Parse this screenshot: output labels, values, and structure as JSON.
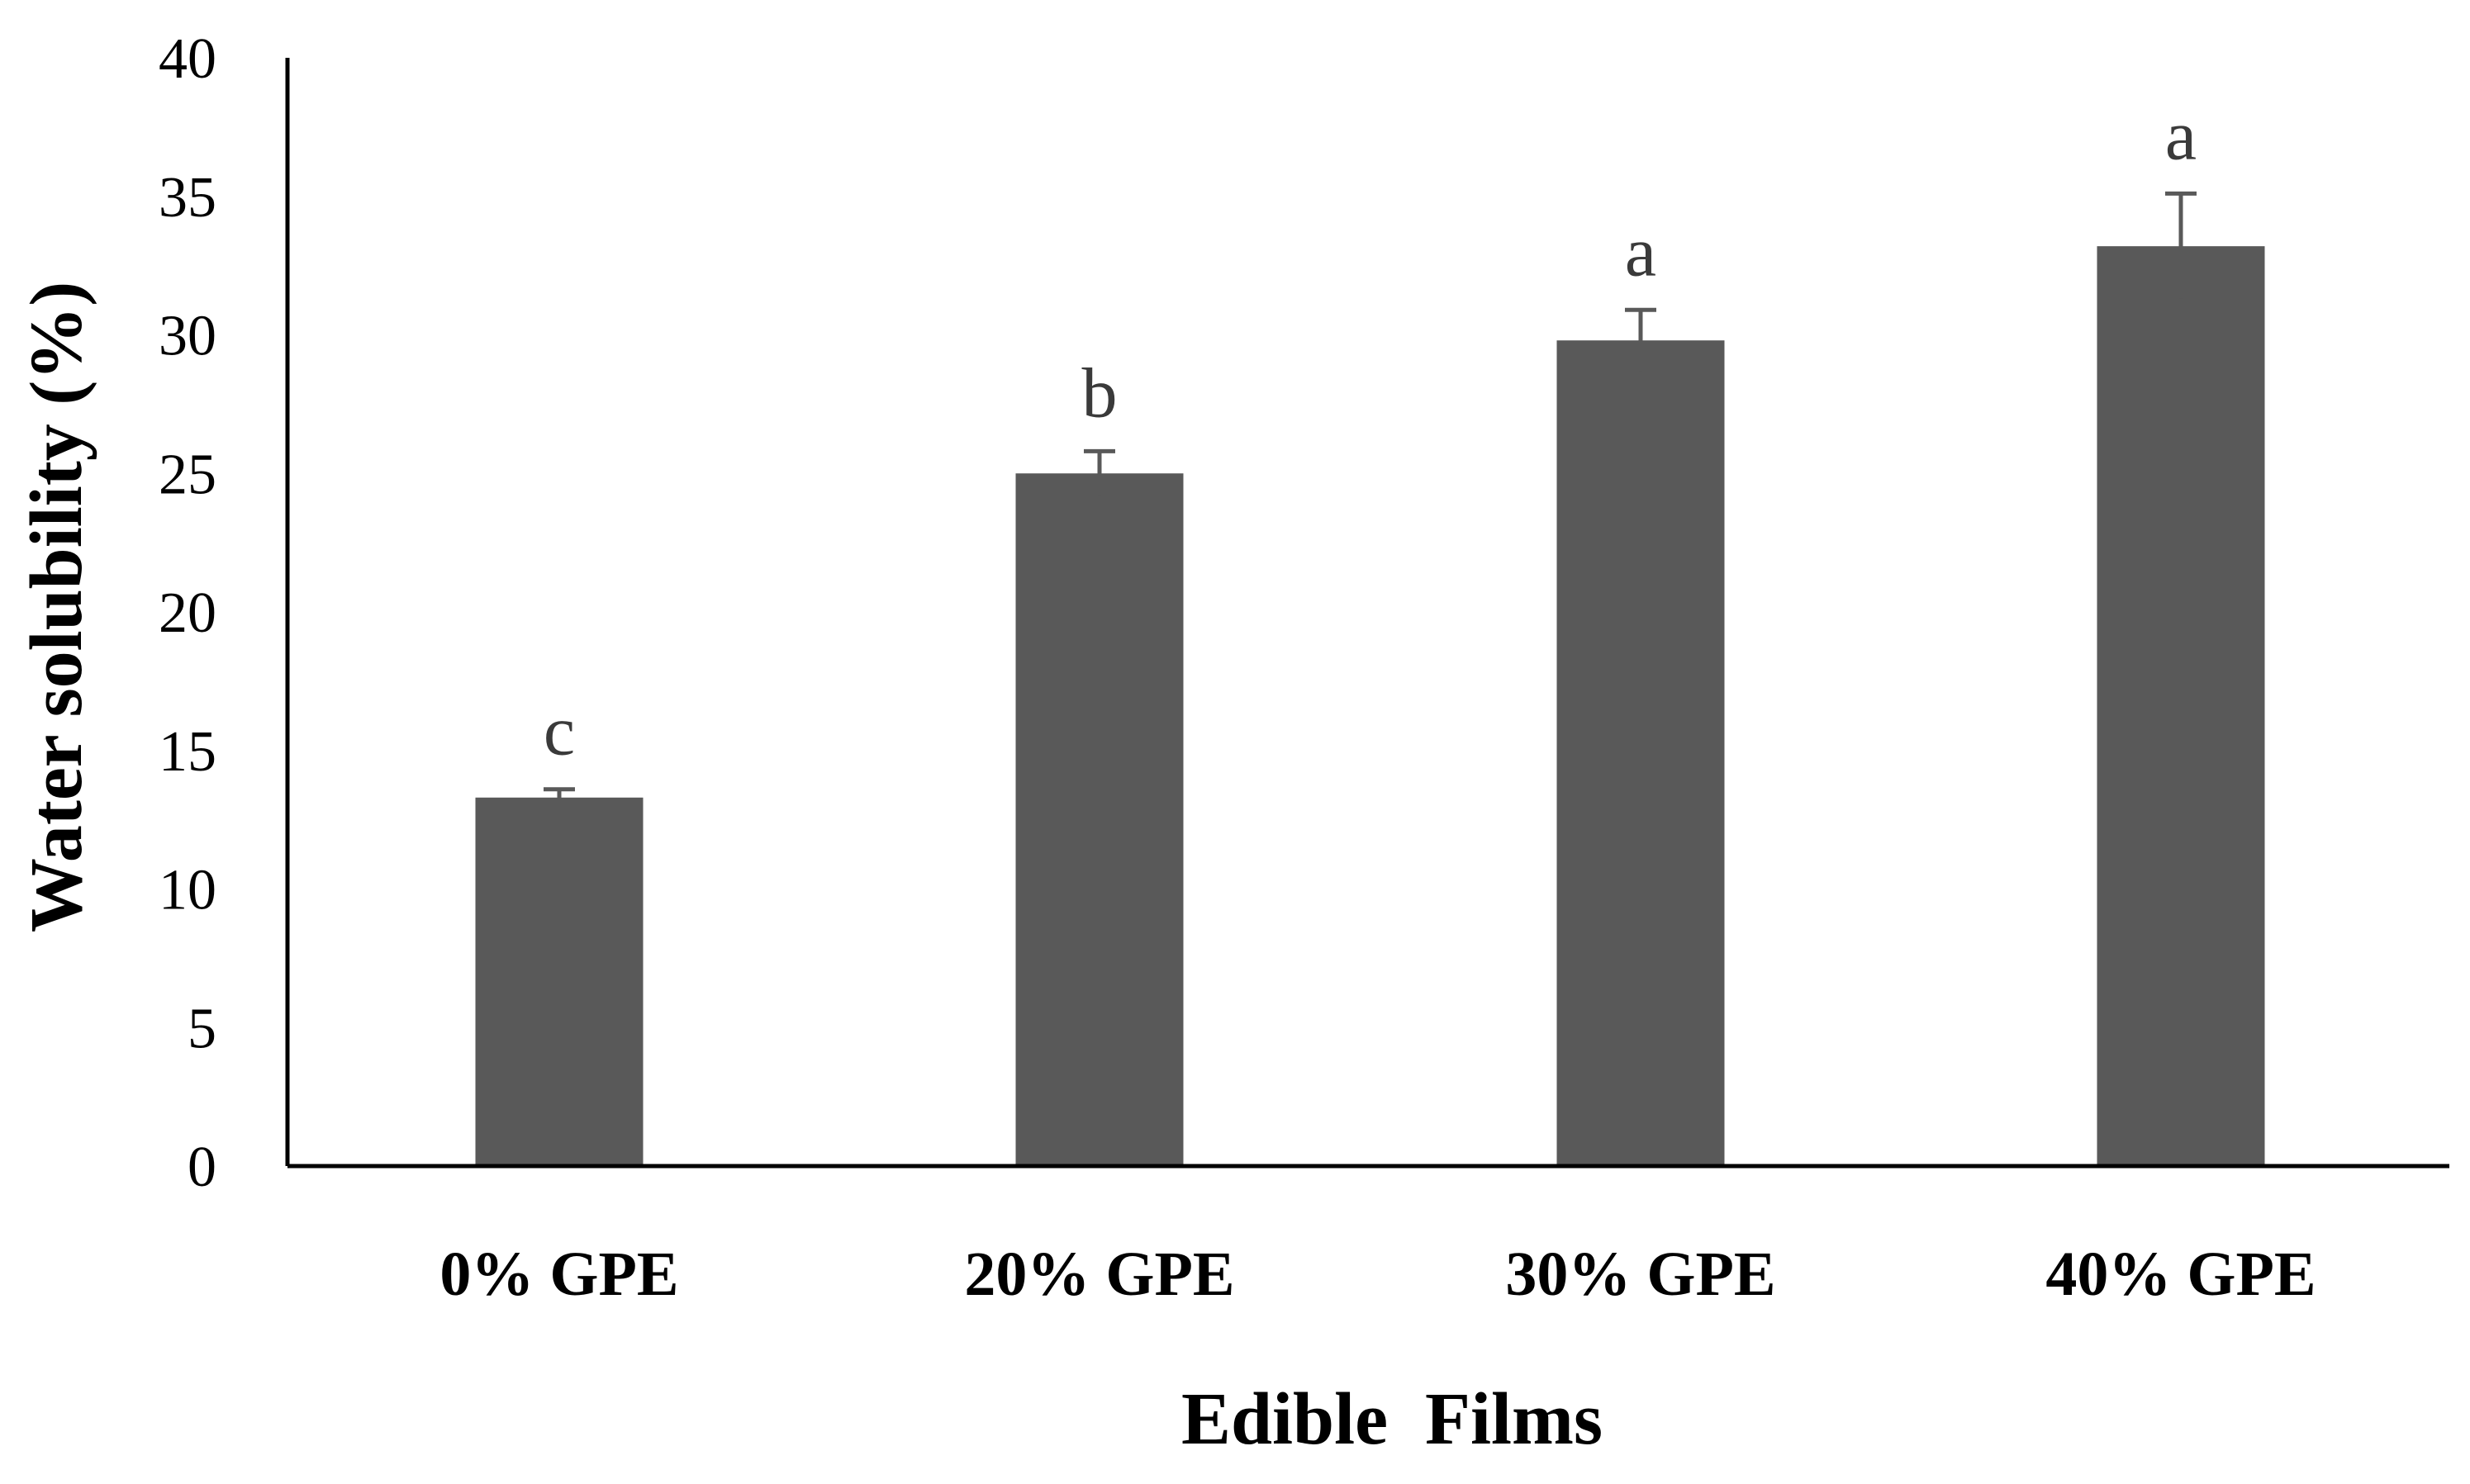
{
  "chart_data": {
    "type": "bar",
    "title": "",
    "xlabel": "Edible  Films",
    "ylabel": "Water solubility  (%)",
    "categories": [
      "0% GPE",
      "20% GPE",
      "30% GPE",
      "40% GPE"
    ],
    "values": [
      13.3,
      25.0,
      29.8,
      33.2
    ],
    "errors": [
      0.3,
      0.8,
      1.1,
      1.9
    ],
    "significance": [
      "c",
      "b",
      "a",
      "a"
    ],
    "ylim": [
      0,
      40
    ],
    "yticks": [
      0,
      5,
      10,
      15,
      20,
      25,
      30,
      35,
      40
    ],
    "grid": false,
    "bar_color": "#595959",
    "error_color": "#595959"
  }
}
